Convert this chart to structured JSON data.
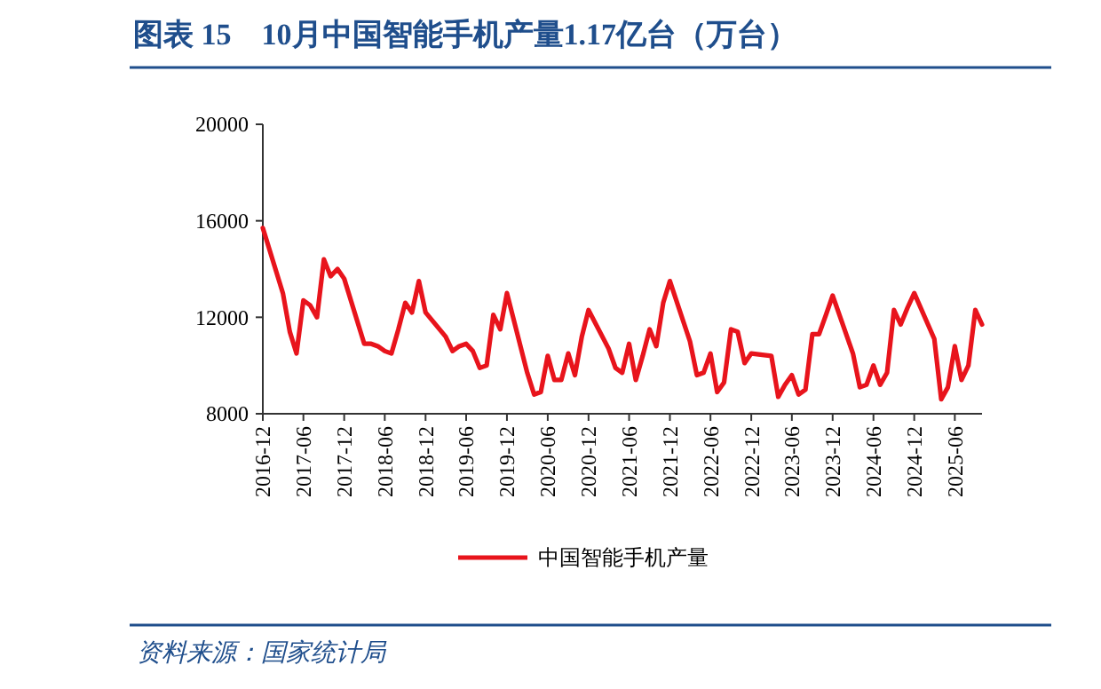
{
  "chart_data": {
    "type": "line",
    "title": "图表 15　10月中国智能手机产量1.17亿台（万台）",
    "x": [
      "2016-12",
      "2017-03",
      "2017-04",
      "2017-05",
      "2017-06",
      "2017-07",
      "2017-08",
      "2017-09",
      "2017-10",
      "2017-11",
      "2017-12",
      "2018-03",
      "2018-04",
      "2018-05",
      "2018-06",
      "2018-07",
      "2018-08",
      "2018-09",
      "2018-10",
      "2018-11",
      "2018-12",
      "2019-03",
      "2019-04",
      "2019-05",
      "2019-06",
      "2019-07",
      "2019-08",
      "2019-09",
      "2019-10",
      "2019-11",
      "2019-12",
      "2020-03",
      "2020-04",
      "2020-05",
      "2020-06",
      "2020-07",
      "2020-08",
      "2020-09",
      "2020-10",
      "2020-11",
      "2020-12",
      "2021-03",
      "2021-04",
      "2021-05",
      "2021-06",
      "2021-07",
      "2021-08",
      "2021-09",
      "2021-10",
      "2021-11",
      "2021-12",
      "2022-03",
      "2022-04",
      "2022-05",
      "2022-06",
      "2022-07",
      "2022-08",
      "2022-09",
      "2022-10",
      "2022-11",
      "2022-12",
      "2023-03",
      "2023-04",
      "2023-05",
      "2023-06",
      "2023-07",
      "2023-08",
      "2023-09",
      "2023-10",
      "2023-11",
      "2023-12",
      "2024-03",
      "2024-04",
      "2024-05",
      "2024-06",
      "2024-07",
      "2024-08",
      "2024-09",
      "2024-10",
      "2024-11",
      "2024-12",
      "2025-03",
      "2025-04",
      "2025-05",
      "2025-06",
      "2025-07",
      "2025-08",
      "2025-09",
      "2025-10"
    ],
    "series": [
      {
        "name": "中国智能手机产量",
        "color": "#e8141c",
        "values": [
          15700,
          13000,
          11400,
          10500,
          12700,
          12500,
          12000,
          14400,
          13700,
          14000,
          13600,
          10900,
          10900,
          10800,
          10600,
          10500,
          11500,
          12600,
          12200,
          13500,
          12200,
          11200,
          10600,
          10800,
          10900,
          10600,
          9900,
          10000,
          12100,
          11500,
          13000,
          9700,
          8800,
          8900,
          10400,
          9400,
          9400,
          10500,
          9600,
          11200,
          12300,
          10700,
          9900,
          9700,
          10900,
          9400,
          10400,
          11500,
          10800,
          12600,
          13500,
          11000,
          9600,
          9700,
          10500,
          8900,
          9300,
          11500,
          11400,
          10100,
          10500,
          10400,
          8700,
          9200,
          9600,
          8800,
          9000,
          11300,
          11300,
          12100,
          12900,
          10500,
          9100,
          9200,
          10000,
          9200,
          9700,
          12300,
          11700,
          12400,
          13000,
          11100,
          8600,
          9100,
          10800,
          9400,
          10000,
          12300,
          11700
        ]
      }
    ],
    "xlim": [
      "2016-12",
      "2025-10"
    ],
    "xticks": [
      "2016-12",
      "2017-06",
      "2017-12",
      "2018-06",
      "2018-12",
      "2019-06",
      "2019-12",
      "2020-06",
      "2020-12",
      "2021-06",
      "2021-12",
      "2022-06",
      "2022-12",
      "2023-06",
      "2023-12",
      "2024-06",
      "2024-12",
      "2025-06"
    ],
    "ylim": [
      8000,
      20000
    ],
    "yticks": [
      8000,
      12000,
      16000,
      20000
    ],
    "grid": false,
    "legend": "bottom",
    "marker": "none",
    "line_style": "solid",
    "annotations": [
      "资料来源：国家统计局"
    ]
  }
}
